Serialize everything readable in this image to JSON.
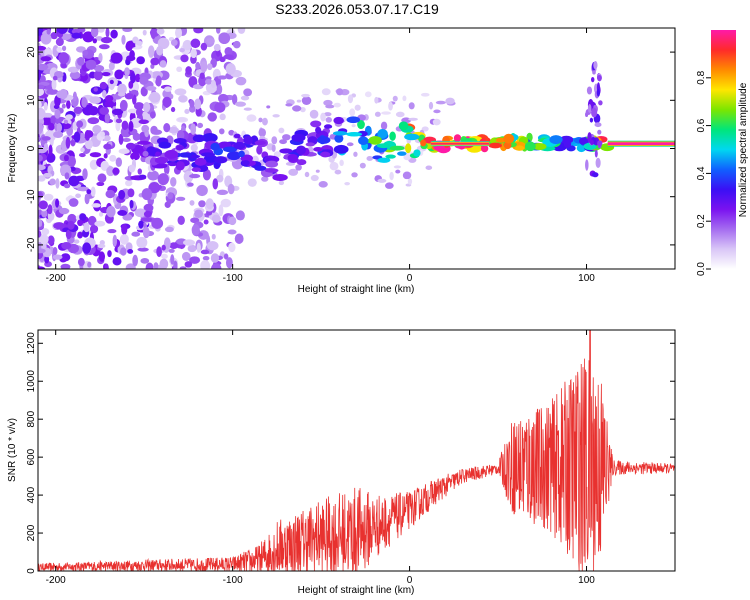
{
  "title": "S233.2026.053.07.17.C19",
  "colors": {
    "snr_line": "#e8312f",
    "cmap": [
      "#ffffff",
      "#d9c6f7",
      "#a56cf0",
      "#7a12f0",
      "#3a10f5",
      "#1060ff",
      "#00d8f0",
      "#00e67a",
      "#7ce600",
      "#ffe600",
      "#ff8a00",
      "#ff2a2a",
      "#ff1aa8"
    ]
  },
  "chart_data": [
    {
      "type": "heatmap",
      "name": "spectrogram",
      "xlabel": "Height of straight line (km)",
      "ylabel": "Frequency (Hz)",
      "xlim": [
        -210,
        150
      ],
      "ylim": [
        -25,
        25
      ],
      "xticks": [
        -200,
        -100,
        0,
        100
      ],
      "yticks": [
        -20,
        -10,
        0,
        10,
        20
      ],
      "colorbar": {
        "label": "Normalized spectral amplitude",
        "range": [
          0,
          1
        ],
        "ticks": [
          0.0,
          0.2,
          0.4,
          0.6,
          0.8
        ]
      },
      "ridge": [
        {
          "x": -155,
          "f": -3.0,
          "a": 0.25
        },
        {
          "x": -145,
          "f": -1.5,
          "a": 0.28
        },
        {
          "x": -135,
          "f": -1.0,
          "a": 0.3
        },
        {
          "x": -125,
          "f": -1.8,
          "a": 0.32
        },
        {
          "x": -115,
          "f": -0.8,
          "a": 0.3
        },
        {
          "x": -105,
          "f": -1.0,
          "a": 0.35
        },
        {
          "x": -95,
          "f": 0.0,
          "a": 0.32
        },
        {
          "x": -85,
          "f": -2.0,
          "a": 0.3
        },
        {
          "x": -75,
          "f": -3.5,
          "a": 0.28
        },
        {
          "x": -65,
          "f": 0.0,
          "a": 0.3
        },
        {
          "x": -55,
          "f": 1.5,
          "a": 0.32
        },
        {
          "x": -45,
          "f": 2.5,
          "a": 0.35
        },
        {
          "x": -35,
          "f": 3.0,
          "a": 0.45
        },
        {
          "x": -25,
          "f": 2.0,
          "a": 0.55
        },
        {
          "x": -15,
          "f": 0.5,
          "a": 0.65
        },
        {
          "x": -5,
          "f": 2.0,
          "a": 0.7
        },
        {
          "x": 5,
          "f": 1.0,
          "a": 0.85
        },
        {
          "x": 20,
          "f": 1.0,
          "a": 0.95
        },
        {
          "x": 40,
          "f": 1.0,
          "a": 0.9
        },
        {
          "x": 55,
          "f": 1.2,
          "a": 0.75
        },
        {
          "x": 70,
          "f": 1.2,
          "a": 0.6
        },
        {
          "x": 85,
          "f": 1.0,
          "a": 0.5
        },
        {
          "x": 100,
          "f": 1.0,
          "a": 0.45
        },
        {
          "x": 110,
          "f": 1.0,
          "a": 0.95
        },
        {
          "x": 150,
          "f": 1.0,
          "a": 1.0
        }
      ]
    },
    {
      "type": "line",
      "name": "snr",
      "xlabel": "Height of straight line (km)",
      "ylabel": "SNR (10 * v/v)",
      "xlim": [
        -210,
        150
      ],
      "ylim": [
        0,
        1270
      ],
      "xticks": [
        -200,
        -100,
        0,
        100
      ],
      "yticks": [
        0,
        200,
        400,
        600,
        800,
        1000,
        1200
      ],
      "envelope": [
        {
          "x": -210,
          "base": 20,
          "amp": 20
        },
        {
          "x": -150,
          "base": 30,
          "amp": 30
        },
        {
          "x": -100,
          "base": 35,
          "amp": 40
        },
        {
          "x": -85,
          "base": 60,
          "amp": 80
        },
        {
          "x": -75,
          "base": 120,
          "amp": 150
        },
        {
          "x": -50,
          "base": 180,
          "amp": 200
        },
        {
          "x": -30,
          "base": 200,
          "amp": 250
        },
        {
          "x": -15,
          "base": 250,
          "amp": 150
        },
        {
          "x": 0,
          "base": 320,
          "amp": 100
        },
        {
          "x": 15,
          "base": 420,
          "amp": 70
        },
        {
          "x": 30,
          "base": 500,
          "amp": 40
        },
        {
          "x": 50,
          "base": 540,
          "amp": 30
        },
        {
          "x": 58,
          "base": 550,
          "amp": 250
        },
        {
          "x": 80,
          "base": 550,
          "amp": 350
        },
        {
          "x": 100,
          "base": 550,
          "amp": 600
        },
        {
          "x": 108,
          "base": 550,
          "amp": 500
        },
        {
          "x": 115,
          "base": 545,
          "amp": 40
        },
        {
          "x": 150,
          "base": 540,
          "amp": 25
        }
      ],
      "peak": {
        "x": 102,
        "y": 1270
      }
    }
  ]
}
